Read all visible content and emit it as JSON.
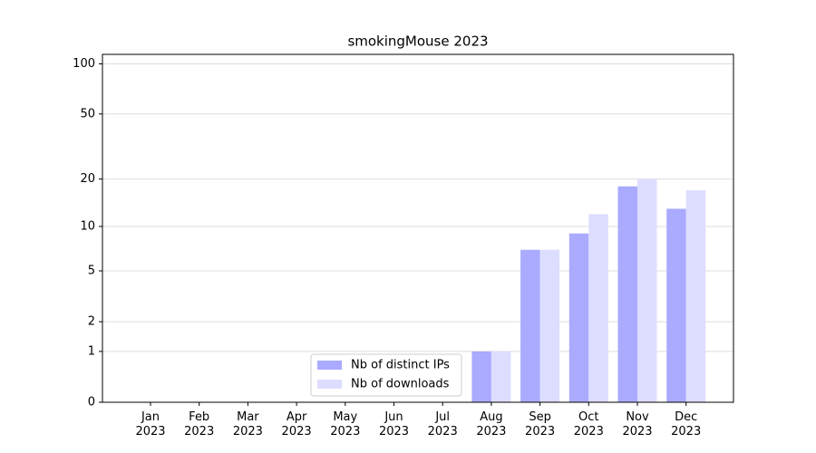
{
  "chart_data": {
    "type": "bar",
    "title": "smokingMouse 2023",
    "categories": [
      "Jan\n2023",
      "Feb\n2023",
      "Mar\n2023",
      "Apr\n2023",
      "May\n2023",
      "Jun\n2023",
      "Jul\n2023",
      "Aug\n2023",
      "Sep\n2023",
      "Oct\n2023",
      "Nov\n2023",
      "Dec\n2023"
    ],
    "series": [
      {
        "name": "Nb of distinct IPs",
        "color": "#aaaaff",
        "values": [
          0,
          0,
          0,
          0,
          0,
          0,
          0,
          1,
          7,
          9,
          18,
          13
        ]
      },
      {
        "name": "Nb of downloads",
        "color": "#ddddff",
        "values": [
          0,
          0,
          0,
          0,
          0,
          0,
          0,
          1,
          7,
          12,
          20,
          17
        ]
      }
    ],
    "yscale": "symlog",
    "ylim": [
      0,
      114
    ],
    "yticks": [
      0,
      1,
      2,
      5,
      10,
      20,
      50,
      100
    ],
    "grid": true,
    "legend": "lower center"
  }
}
